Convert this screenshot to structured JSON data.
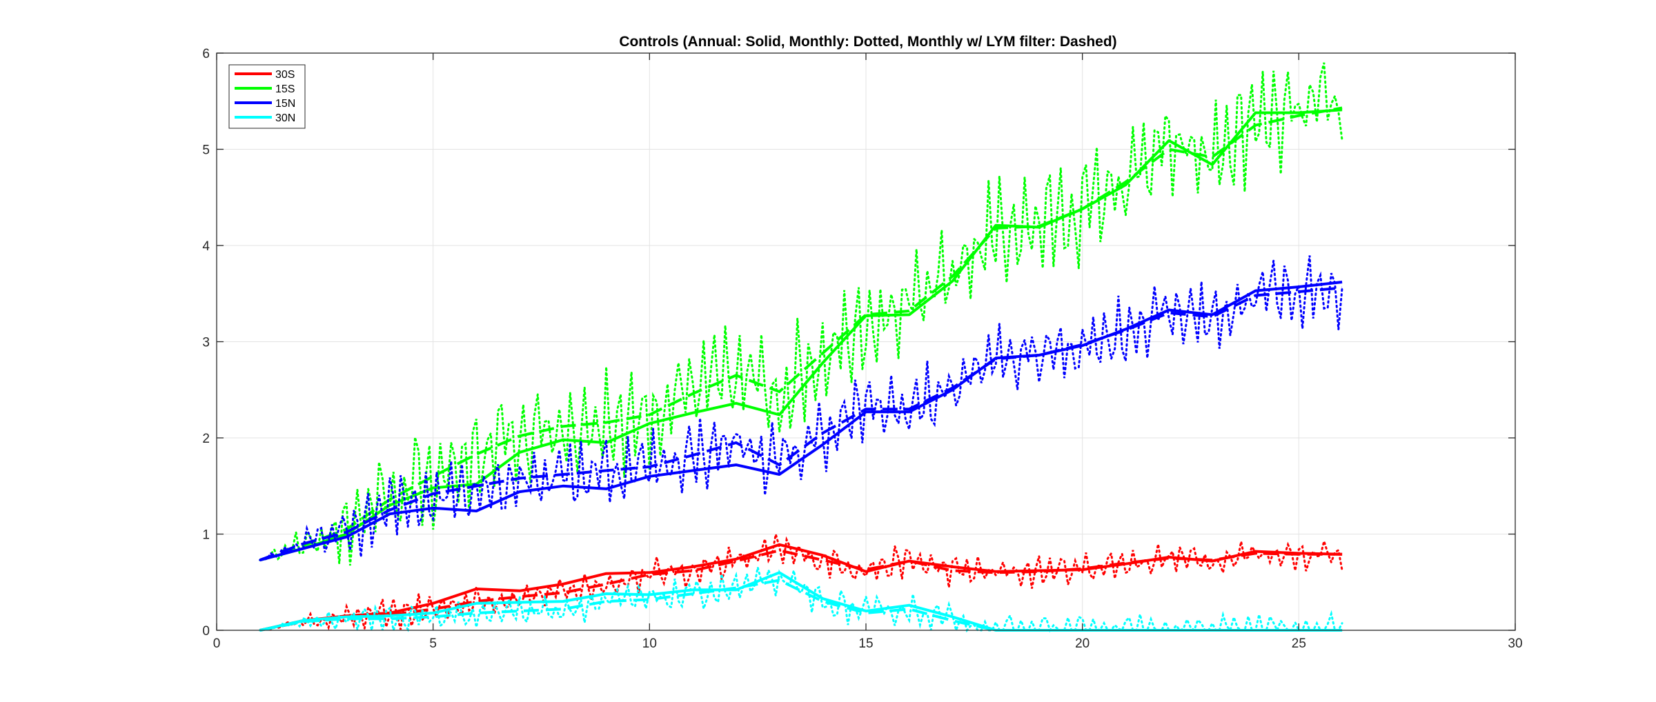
{
  "chart_data": {
    "type": "line",
    "title": "Controls (Annual: Solid, Monthly: Dotted, Monthly w/ LYM filter: Dashed)",
    "xlabel": "",
    "ylabel": "",
    "xlim": [
      0,
      30
    ],
    "ylim": [
      0,
      6
    ],
    "x_ticks": [
      0,
      5,
      10,
      15,
      20,
      25,
      30
    ],
    "y_ticks": [
      0,
      1,
      2,
      3,
      4,
      5,
      6
    ],
    "grid": true,
    "legend_position": "top-left",
    "legend": [
      "30S",
      "15S",
      "15N",
      "30N"
    ],
    "series": [
      {
        "name": "30S",
        "color": "#ff0000",
        "annual": {
          "x": [
            1,
            2,
            3,
            4,
            5,
            6,
            7,
            8,
            9,
            10,
            11,
            12,
            13,
            14,
            15,
            16,
            17,
            18,
            19,
            20,
            21,
            22,
            23,
            24,
            25,
            26
          ],
          "y": [
            0.0,
            0.1,
            0.15,
            0.18,
            0.28,
            0.43,
            0.41,
            0.48,
            0.59,
            0.6,
            0.66,
            0.74,
            0.89,
            0.78,
            0.61,
            0.72,
            0.66,
            0.61,
            0.62,
            0.63,
            0.69,
            0.76,
            0.72,
            0.82,
            0.8,
            0.79
          ]
        },
        "filtered": {
          "x": [
            1,
            2,
            3,
            4,
            5,
            6,
            7,
            8,
            9,
            10,
            11,
            12,
            13,
            14,
            15,
            16,
            17,
            18,
            19,
            20,
            21,
            22,
            23,
            24,
            25,
            26
          ],
          "y": [
            0.0,
            0.09,
            0.13,
            0.16,
            0.22,
            0.3,
            0.35,
            0.39,
            0.48,
            0.58,
            0.62,
            0.72,
            0.83,
            0.73,
            0.63,
            0.72,
            0.62,
            0.6,
            0.61,
            0.64,
            0.7,
            0.75,
            0.73,
            0.8,
            0.79,
            0.79
          ]
        },
        "monthly_noise_amplitude": 0.15
      },
      {
        "name": "15S",
        "color": "#00ff00",
        "annual": {
          "x": [
            1,
            2,
            3,
            4,
            5,
            6,
            7,
            8,
            9,
            10,
            11,
            12,
            13,
            14,
            15,
            16,
            17,
            18,
            19,
            20,
            21,
            22,
            23,
            24,
            25,
            26
          ],
          "y": [
            0.73,
            0.85,
            1.0,
            1.3,
            1.48,
            1.52,
            1.85,
            1.98,
            1.95,
            2.15,
            2.26,
            2.36,
            2.24,
            2.78,
            3.27,
            3.28,
            3.63,
            4.21,
            4.19,
            4.38,
            4.63,
            5.09,
            4.84,
            5.38,
            5.38,
            5.41
          ]
        },
        "filtered": {
          "x": [
            1,
            2,
            3,
            4,
            5,
            6,
            7,
            8,
            9,
            10,
            11,
            12,
            13,
            14,
            15,
            16,
            17,
            18,
            19,
            20,
            21,
            22,
            23,
            24,
            25,
            26
          ],
          "y": [
            0.73,
            0.88,
            1.05,
            1.36,
            1.6,
            1.83,
            2.02,
            2.12,
            2.16,
            2.24,
            2.46,
            2.65,
            2.48,
            2.88,
            3.28,
            3.32,
            3.68,
            4.18,
            4.2,
            4.38,
            4.66,
            5.0,
            4.92,
            5.25,
            5.35,
            5.43
          ]
        },
        "monthly_noise_amplitude": 0.5
      },
      {
        "name": "15N",
        "color": "#0000ff",
        "annual": {
          "x": [
            1,
            2,
            3,
            4,
            5,
            6,
            7,
            8,
            9,
            10,
            11,
            12,
            13,
            14,
            15,
            16,
            17,
            18,
            19,
            20,
            21,
            22,
            23,
            24,
            25,
            26
          ],
          "y": [
            0.73,
            0.85,
            0.97,
            1.21,
            1.27,
            1.24,
            1.44,
            1.5,
            1.47,
            1.6,
            1.66,
            1.72,
            1.62,
            1.93,
            2.27,
            2.27,
            2.5,
            2.83,
            2.86,
            2.96,
            3.13,
            3.33,
            3.28,
            3.53,
            3.57,
            3.62
          ]
        },
        "filtered": {
          "x": [
            1,
            2,
            3,
            4,
            5,
            6,
            7,
            8,
            9,
            10,
            11,
            12,
            13,
            14,
            15,
            16,
            17,
            18,
            19,
            20,
            21,
            22,
            23,
            24,
            25,
            26
          ],
          "y": [
            0.73,
            0.9,
            1.02,
            1.25,
            1.42,
            1.5,
            1.58,
            1.62,
            1.66,
            1.7,
            1.82,
            1.95,
            1.72,
            2.05,
            2.3,
            2.3,
            2.52,
            2.82,
            2.86,
            2.97,
            3.12,
            3.3,
            3.26,
            3.48,
            3.52,
            3.56
          ]
        },
        "monthly_noise_amplitude": 0.35
      },
      {
        "name": "30N",
        "color": "#00ffff",
        "annual": {
          "x": [
            1,
            2,
            3,
            4,
            5,
            6,
            7,
            8,
            9,
            10,
            11,
            12,
            13,
            14,
            15,
            16,
            17,
            18,
            19,
            20,
            21,
            22,
            23,
            24,
            25,
            26
          ],
          "y": [
            0.0,
            0.1,
            0.14,
            0.15,
            0.18,
            0.28,
            0.29,
            0.3,
            0.38,
            0.37,
            0.42,
            0.42,
            0.6,
            0.33,
            0.2,
            0.26,
            0.14,
            0.0,
            0.0,
            0.0,
            0.0,
            0.0,
            0.0,
            0.0,
            0.0,
            0.0
          ]
        },
        "filtered": {
          "x": [
            1,
            2,
            3,
            4,
            5,
            6,
            7,
            8,
            9,
            10,
            11,
            12,
            13,
            14,
            15,
            16,
            17,
            18,
            19,
            20,
            21,
            22,
            23,
            24,
            25,
            26
          ],
          "y": [
            0.0,
            0.09,
            0.12,
            0.12,
            0.14,
            0.18,
            0.2,
            0.22,
            0.3,
            0.32,
            0.38,
            0.44,
            0.52,
            0.3,
            0.18,
            0.22,
            0.1,
            0.0,
            0.0,
            0.0,
            0.0,
            0.0,
            0.0,
            0.0,
            0.0,
            0.0
          ]
        },
        "monthly_noise_amplitude": 0.15
      }
    ]
  }
}
